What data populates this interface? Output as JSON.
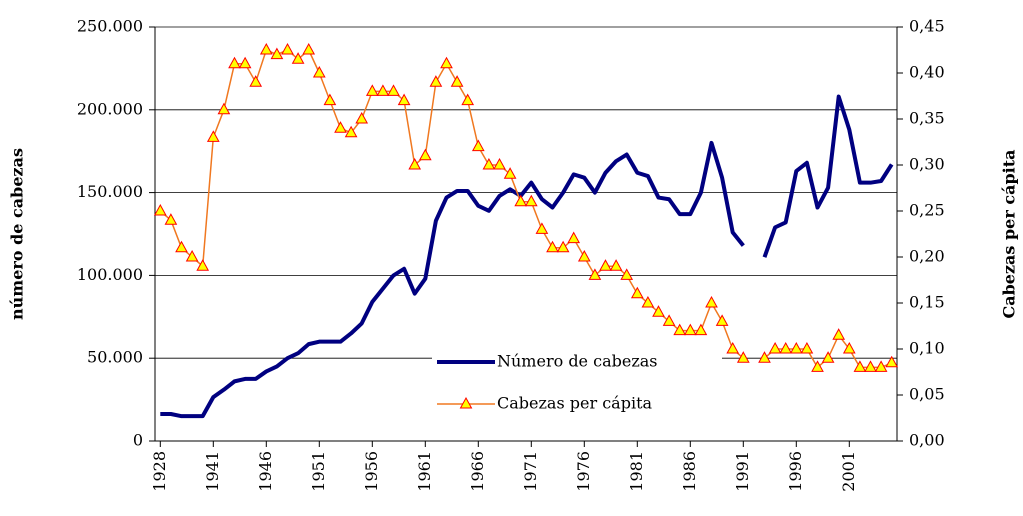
{
  "chart_data": {
    "type": "line",
    "ylabel": "número de cabezas",
    "y2label": "Cabezas per cápita",
    "categories": [
      "1928",
      null,
      null,
      null,
      null,
      "1941",
      null,
      null,
      null,
      null,
      "1946",
      null,
      null,
      null,
      null,
      "1951",
      null,
      null,
      null,
      null,
      "1956",
      null,
      null,
      null,
      null,
      "1961",
      null,
      null,
      null,
      null,
      "1966",
      null,
      null,
      null,
      null,
      "1971",
      null,
      null,
      null,
      null,
      "1976",
      null,
      null,
      null,
      null,
      "1981",
      null,
      null,
      null,
      null,
      "1986",
      null,
      null,
      null,
      null,
      "1991",
      null,
      null,
      null,
      null,
      "1996",
      null,
      null,
      null,
      null,
      "2001",
      null,
      null,
      null,
      null
    ],
    "series": [
      {
        "name": "Número de cabezas",
        "color": "#000080",
        "axis": "y",
        "values": [
          16300,
          16300,
          15000,
          15000,
          15000,
          26500,
          31000,
          36000,
          37500,
          37500,
          42000,
          45000,
          50000,
          53000,
          58500,
          60000,
          60000,
          60000,
          65000,
          71000,
          84000,
          92000,
          100000,
          104000,
          89000,
          98000,
          133000,
          147000,
          151000,
          151000,
          142000,
          139000,
          148000,
          152000,
          148000,
          156000,
          146000,
          141000,
          150000,
          161000,
          159000,
          150000,
          162000,
          169000,
          173000,
          162000,
          160000,
          147000,
          146000,
          137000,
          137000,
          150000,
          180000,
          159000,
          126000,
          118000,
          null,
          111000,
          129000,
          132000,
          163000,
          168000,
          141000,
          153000,
          208000,
          188000,
          156000,
          156000,
          157000,
          167000
        ]
      },
      {
        "name": "Cabezas per cápita",
        "color": "#f07820",
        "axis": "y2",
        "marker": "triangle",
        "marker_fill": "#ffff00",
        "marker_edge": "#ff0000",
        "values": [
          0.25,
          0.24,
          0.21,
          0.2,
          0.19,
          0.33,
          0.36,
          0.41,
          0.41,
          0.39,
          0.425,
          0.42,
          0.425,
          0.415,
          0.425,
          0.4,
          0.37,
          0.34,
          0.335,
          0.35,
          0.38,
          0.38,
          0.38,
          0.37,
          0.3,
          0.31,
          0.39,
          0.41,
          0.39,
          0.37,
          0.32,
          0.3,
          0.3,
          0.29,
          0.26,
          0.26,
          0.23,
          0.21,
          0.21,
          0.22,
          0.2,
          0.18,
          0.19,
          0.19,
          0.18,
          0.16,
          0.15,
          0.14,
          0.13,
          0.12,
          0.12,
          0.12,
          0.15,
          0.13,
          0.1,
          0.09,
          null,
          0.09,
          0.1,
          0.1,
          0.1,
          0.1,
          0.08,
          0.09,
          0.115,
          0.1,
          0.08,
          0.08,
          0.08,
          0.085
        ]
      }
    ],
    "ylim": [
      0,
      250000
    ],
    "yticks": [
      {
        "value": 0,
        "label": "0"
      },
      {
        "value": 50000,
        "label": "50.000"
      },
      {
        "value": 100000,
        "label": "100.000"
      },
      {
        "value": 150000,
        "label": "150.000"
      },
      {
        "value": 200000,
        "label": "200.000"
      },
      {
        "value": 250000,
        "label": "250.000"
      }
    ],
    "y2lim": [
      0,
      0.45
    ],
    "y2ticks": [
      {
        "value": 0,
        "label": "0,00"
      },
      {
        "value": 0.05,
        "label": "0,05"
      },
      {
        "value": 0.1,
        "label": "0,10"
      },
      {
        "value": 0.15,
        "label": "0,15"
      },
      {
        "value": 0.2,
        "label": "0,20"
      },
      {
        "value": 0.25,
        "label": "0,25"
      },
      {
        "value": 0.3,
        "label": "0,30"
      },
      {
        "value": 0.35,
        "label": "0,35"
      },
      {
        "value": 0.4,
        "label": "0,40"
      },
      {
        "value": 0.45,
        "label": "0,45"
      }
    ],
    "grid": true,
    "legend": "bottom-center"
  }
}
